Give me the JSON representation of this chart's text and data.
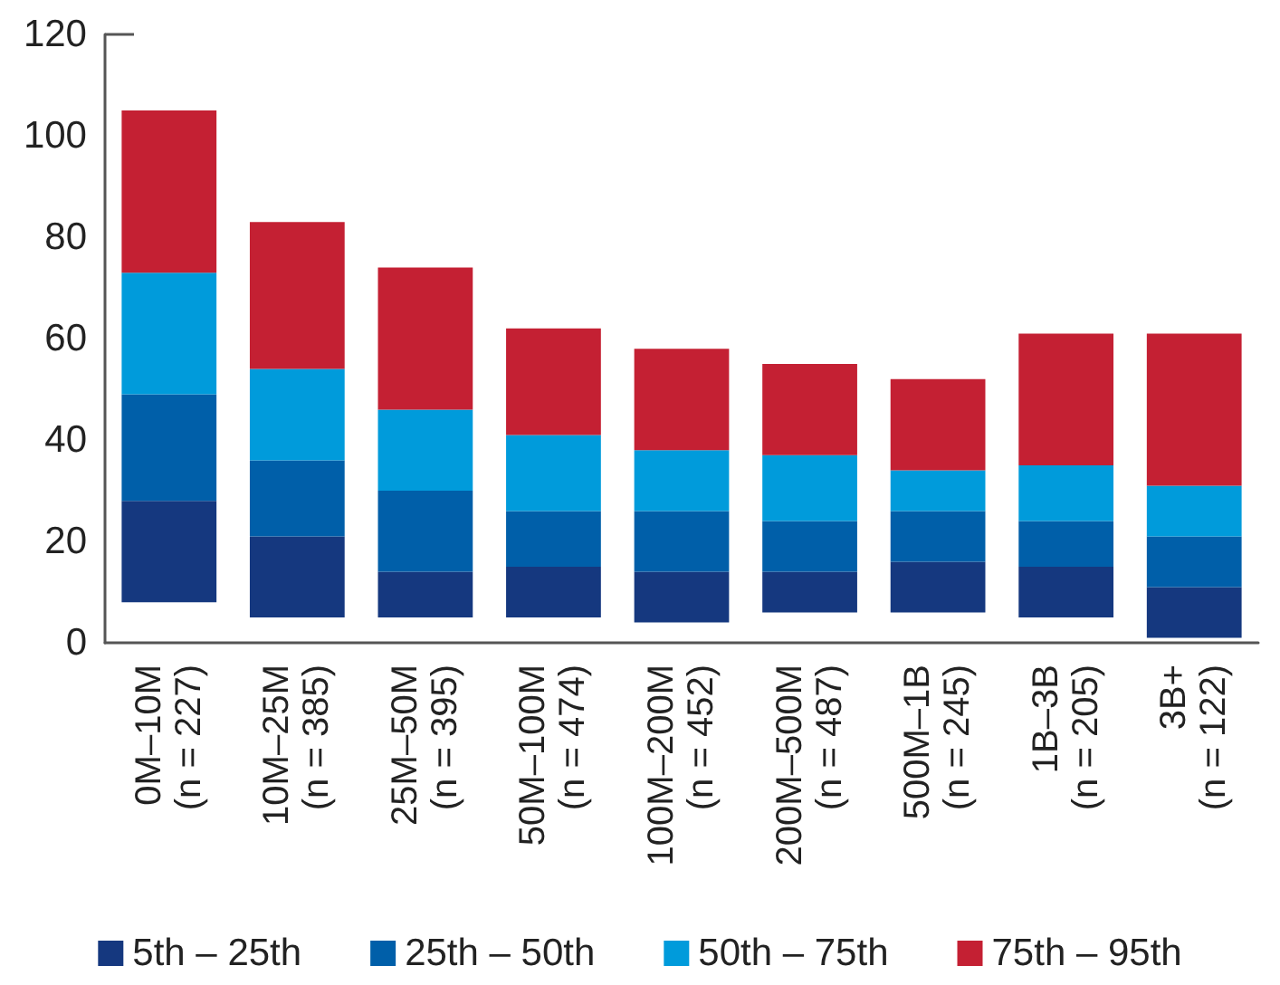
{
  "chart_data": {
    "type": "bar",
    "categories": [
      "0M–10M\n(n = 227)",
      "10M–25M\n(n = 385)",
      "25M–50M\n(n = 395)",
      "50M–100M\n(n = 474)",
      "100M–200M\n(n = 452)",
      "200M–500M\n(n = 487)",
      "500M–1B\n(n = 245)",
      "1B–3B\n(n = 205)",
      "3B+\n(n = 122)"
    ],
    "series": [
      {
        "name": "5th – 25th",
        "color": "#15387f",
        "base": [
          8,
          5,
          5,
          5,
          4,
          6,
          6,
          5,
          1
        ],
        "values": [
          20,
          16,
          9,
          10,
          10,
          8,
          10,
          10,
          10
        ]
      },
      {
        "name": "25th – 50th",
        "color": "#005fa9",
        "base": [
          28,
          21,
          14,
          15,
          14,
          14,
          16,
          15,
          11
        ],
        "values": [
          21,
          15,
          16,
          11,
          12,
          10,
          10,
          9,
          10
        ]
      },
      {
        "name": "50th – 75th",
        "color": "#009bdb",
        "base": [
          49,
          36,
          30,
          26,
          26,
          24,
          26,
          24,
          21
        ],
        "values": [
          24,
          18,
          16,
          15,
          12,
          13,
          8,
          11,
          10
        ]
      },
      {
        "name": "75th – 95th",
        "color": "#c42033",
        "base": [
          73,
          54,
          46,
          41,
          38,
          37,
          34,
          35,
          31
        ],
        "values": [
          32,
          29,
          28,
          21,
          20,
          18,
          18,
          26,
          30
        ]
      }
    ],
    "ylim": [
      0,
      120
    ],
    "yticks": [
      0,
      20,
      40,
      60,
      80,
      100,
      120
    ],
    "grid": false,
    "legend": "bottom"
  }
}
